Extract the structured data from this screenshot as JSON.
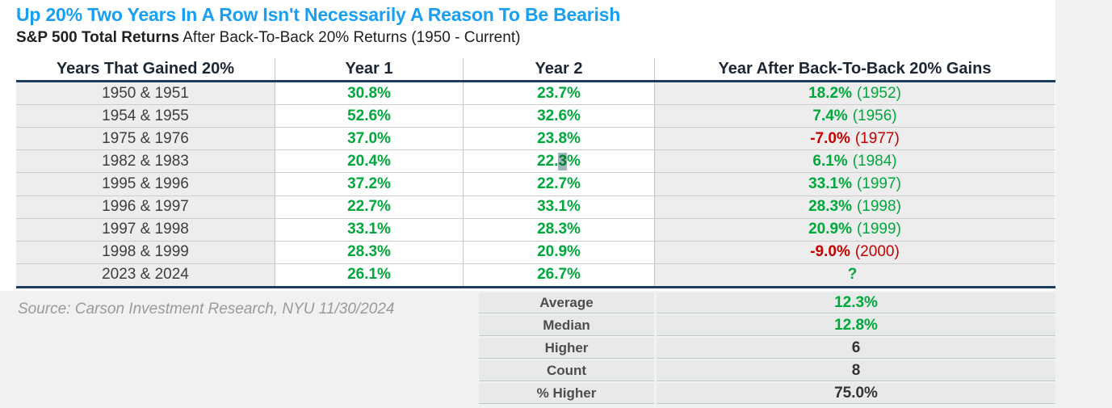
{
  "header": {
    "title": "Up 20% Two Years In A Row Isn't Necessarily A Reason To Be Bearish",
    "subtitle_bold": "S&P 500 Total Returns",
    "subtitle_rest": " After Back-To-Back 20% Returns (1950 - Current)"
  },
  "source_note": "Source: Carson Investment Research, NYU 11/30/2024",
  "colors": {
    "title_blue": "#189ff2",
    "positive_green": "#00a83c",
    "negative_red": "#c40000",
    "navy_rule": "#1e3c5c",
    "shaded_cell": "#ededed",
    "summary_cell": "#e8e9e9",
    "page_background": "#f0f1f1",
    "selection_highlight": "#9fb6ba"
  },
  "chart_data": {
    "type": "table",
    "title": "S&P 500 Total Returns After Back-To-Back 20% Returns (1950 - Current)",
    "columns": [
      "Years That Gained 20%",
      "Year 1",
      "Year 2",
      "Year After Back-To-Back 20% Gains"
    ],
    "rows": [
      {
        "years": "1950 & 1951",
        "year1": "30.8%",
        "year2": "23.7%",
        "after": "18.2%",
        "after_year": "(1952)",
        "sentiment": "positive"
      },
      {
        "years": "1954 & 1955",
        "year1": "52.6%",
        "year2": "32.6%",
        "after": "7.4%",
        "after_year": "(1956)",
        "sentiment": "positive"
      },
      {
        "years": "1975 & 1976",
        "year1": "37.0%",
        "year2": "23.8%",
        "after": "-7.0%",
        "after_year": "(1977)",
        "sentiment": "negative"
      },
      {
        "years": "1982 & 1983",
        "year1": "20.4%",
        "year2": "22.3%",
        "year2_pre": "22.",
        "year2_sel": "3",
        "year2_post": "%",
        "after": "6.1%",
        "after_year": "(1984)",
        "sentiment": "positive"
      },
      {
        "years": "1995 & 1996",
        "year1": "37.2%",
        "year2": "22.7%",
        "after": "33.1%",
        "after_year": "(1997)",
        "sentiment": "positive"
      },
      {
        "years": "1996 & 1997",
        "year1": "22.7%",
        "year2": "33.1%",
        "after": "28.3%",
        "after_year": "(1998)",
        "sentiment": "positive"
      },
      {
        "years": "1997 & 1998",
        "year1": "33.1%",
        "year2": "28.3%",
        "after": "20.9%",
        "after_year": "(1999)",
        "sentiment": "positive"
      },
      {
        "years": "1998 & 1999",
        "year1": "28.3%",
        "year2": "20.9%",
        "after": "-9.0%",
        "after_year": "(2000)",
        "sentiment": "negative"
      },
      {
        "years": "2023 & 2024",
        "year1": "26.1%",
        "year2": "26.7%",
        "after": "?",
        "after_year": "",
        "sentiment": "positive"
      }
    ],
    "summary": [
      {
        "label": "Average",
        "value": "12.3%",
        "positive": true
      },
      {
        "label": "Median",
        "value": "12.8%",
        "positive": true
      },
      {
        "label": "Higher",
        "value": "6",
        "positive": false
      },
      {
        "label": "Count",
        "value": "8",
        "positive": false
      },
      {
        "label": "% Higher",
        "value": "75.0%",
        "positive": false
      }
    ]
  }
}
